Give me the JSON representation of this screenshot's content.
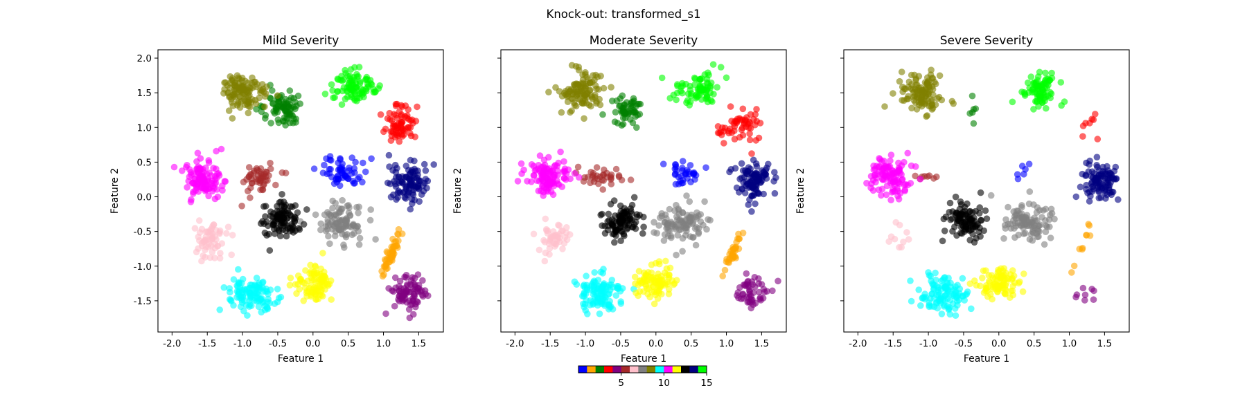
{
  "figure": {
    "suptitle": "Knock-out: transformed_s1"
  },
  "chart_data": [
    {
      "type": "scatter",
      "title": "Mild Severity",
      "xlabel": "Feature 1",
      "ylabel": "Feature 2",
      "xlim": [
        -2.2,
        1.85
      ],
      "ylim": [
        -1.95,
        2.12
      ],
      "xticks": [
        -2.0,
        -1.5,
        -1.0,
        -0.5,
        0.0,
        0.5,
        1.0,
        1.5
      ],
      "yticks": [
        -1.5,
        -1.0,
        -0.5,
        0.0,
        0.5,
        1.0,
        1.5,
        2.0
      ],
      "show_yticklabels": true,
      "marker_alpha": 0.6,
      "clusters": [
        {
          "label": 0,
          "color": "#0000ff",
          "center": [
            0.4,
            0.35
          ],
          "spread": [
            0.15,
            0.12
          ],
          "count": 60
        },
        {
          "label": 1,
          "color": "#ffa500",
          "center": [
            1.1,
            -0.85
          ],
          "spread": [
            0.06,
            0.14
          ],
          "count": 50,
          "elongated": true
        },
        {
          "label": 2,
          "color": "#008000",
          "center": [
            -0.45,
            1.25
          ],
          "spread": [
            0.16,
            0.13
          ],
          "count": 80
        },
        {
          "label": 3,
          "color": "#ff0000",
          "center": [
            1.25,
            1.0
          ],
          "spread": [
            0.13,
            0.14
          ],
          "count": 70
        },
        {
          "label": 4,
          "color": "#800080",
          "center": [
            1.35,
            -1.4
          ],
          "spread": [
            0.13,
            0.12
          ],
          "count": 80
        },
        {
          "label": 5,
          "color": "#a52a2a",
          "center": [
            -0.75,
            0.27
          ],
          "spread": [
            0.14,
            0.1
          ],
          "count": 50
        },
        {
          "label": 6,
          "color": "#ffc0cb",
          "center": [
            -1.45,
            -0.62
          ],
          "spread": [
            0.13,
            0.13
          ],
          "count": 60
        },
        {
          "label": 7,
          "color": "#808080",
          "center": [
            0.4,
            -0.38
          ],
          "spread": [
            0.17,
            0.14
          ],
          "count": 100
        },
        {
          "label": 8,
          "color": "#808000",
          "center": [
            -1.0,
            1.5
          ],
          "spread": [
            0.15,
            0.13
          ],
          "count": 110
        },
        {
          "label": 9,
          "color": "#00ffff",
          "center": [
            -0.85,
            -1.4
          ],
          "spread": [
            0.18,
            0.13
          ],
          "count": 110
        },
        {
          "label": 10,
          "color": "#ff00ff",
          "center": [
            -1.55,
            0.28
          ],
          "spread": [
            0.15,
            0.13
          ],
          "count": 110
        },
        {
          "label": 11,
          "color": "#ffff00",
          "center": [
            0.0,
            -1.25
          ],
          "spread": [
            0.13,
            0.12
          ],
          "count": 90
        },
        {
          "label": 12,
          "color": "#000000",
          "center": [
            -0.45,
            -0.35
          ],
          "spread": [
            0.14,
            0.13
          ],
          "count": 100
        },
        {
          "label": 13,
          "color": "#000080",
          "center": [
            1.4,
            0.22
          ],
          "spread": [
            0.13,
            0.15
          ],
          "count": 100
        },
        {
          "label": 14,
          "color": "#00ff00",
          "center": [
            0.6,
            1.58
          ],
          "spread": [
            0.17,
            0.12
          ],
          "count": 90
        }
      ]
    },
    {
      "type": "scatter",
      "title": "Moderate Severity",
      "xlabel": "Feature 1",
      "ylabel": "Feature 2",
      "xlim": [
        -2.2,
        1.85
      ],
      "ylim": [
        -1.95,
        2.12
      ],
      "xticks": [
        -2.0,
        -1.5,
        -1.0,
        -0.5,
        0.0,
        0.5,
        1.0,
        1.5
      ],
      "yticks": [
        -1.5,
        -1.0,
        -0.5,
        0.0,
        0.5,
        1.0,
        1.5,
        2.0
      ],
      "show_yticklabels": false,
      "marker_alpha": 0.6,
      "clusters": [
        {
          "label": 0,
          "color": "#0000ff",
          "center": [
            0.4,
            0.35
          ],
          "spread": [
            0.12,
            0.1
          ],
          "count": 35
        },
        {
          "label": 1,
          "color": "#ffa500",
          "center": [
            1.1,
            -0.8
          ],
          "spread": [
            0.06,
            0.14
          ],
          "count": 35,
          "elongated": true
        },
        {
          "label": 2,
          "color": "#008000",
          "center": [
            -0.4,
            1.25
          ],
          "spread": [
            0.12,
            0.12
          ],
          "count": 55
        },
        {
          "label": 3,
          "color": "#ff0000",
          "center": [
            1.2,
            1.0
          ],
          "spread": [
            0.14,
            0.13
          ],
          "count": 55
        },
        {
          "label": 4,
          "color": "#800080",
          "center": [
            1.35,
            -1.4
          ],
          "spread": [
            0.12,
            0.12
          ],
          "count": 50
        },
        {
          "label": 5,
          "color": "#a52a2a",
          "center": [
            -0.8,
            0.27
          ],
          "spread": [
            0.16,
            0.08
          ],
          "count": 35
        },
        {
          "label": 6,
          "color": "#ffc0cb",
          "center": [
            -1.45,
            -0.6
          ],
          "spread": [
            0.13,
            0.13
          ],
          "count": 45
        },
        {
          "label": 7,
          "color": "#808080",
          "center": [
            0.4,
            -0.38
          ],
          "spread": [
            0.17,
            0.14
          ],
          "count": 100
        },
        {
          "label": 8,
          "color": "#808000",
          "center": [
            -1.05,
            1.5
          ],
          "spread": [
            0.15,
            0.13
          ],
          "count": 110
        },
        {
          "label": 9,
          "color": "#00ffff",
          "center": [
            -0.8,
            -1.4
          ],
          "spread": [
            0.18,
            0.13
          ],
          "count": 110
        },
        {
          "label": 10,
          "color": "#ff00ff",
          "center": [
            -1.55,
            0.3
          ],
          "spread": [
            0.15,
            0.13
          ],
          "count": 110
        },
        {
          "label": 11,
          "color": "#ffff00",
          "center": [
            0.0,
            -1.25
          ],
          "spread": [
            0.13,
            0.12
          ],
          "count": 90
        },
        {
          "label": 12,
          "color": "#000000",
          "center": [
            -0.5,
            -0.35
          ],
          "spread": [
            0.14,
            0.13
          ],
          "count": 100
        },
        {
          "label": 13,
          "color": "#000080",
          "center": [
            1.4,
            0.22
          ],
          "spread": [
            0.13,
            0.15
          ],
          "count": 100
        },
        {
          "label": 14,
          "color": "#00ff00",
          "center": [
            0.6,
            1.55
          ],
          "spread": [
            0.15,
            0.12
          ],
          "count": 80
        }
      ]
    },
    {
      "type": "scatter",
      "title": "Severe Severity",
      "xlabel": "Feature 1",
      "ylabel": "Feature 2",
      "xlim": [
        -2.2,
        1.85
      ],
      "ylim": [
        -1.95,
        2.12
      ],
      "xticks": [
        -2.0,
        -1.5,
        -1.0,
        -0.5,
        0.0,
        0.5,
        1.0,
        1.5
      ],
      "yticks": [
        -1.5,
        -1.0,
        -0.5,
        0.0,
        0.5,
        1.0,
        1.5,
        2.0
      ],
      "show_yticklabels": false,
      "marker_alpha": 0.6,
      "clusters": [
        {
          "label": 0,
          "color": "#0000ff",
          "center": [
            0.35,
            0.35
          ],
          "spread": [
            0.07,
            0.1
          ],
          "count": 6
        },
        {
          "label": 1,
          "color": "#ffa500",
          "center": [
            1.17,
            -0.75
          ],
          "spread": [
            0.06,
            0.22
          ],
          "count": 10,
          "elongated": true
        },
        {
          "label": 2,
          "color": "#008000",
          "center": [
            -0.4,
            1.2
          ],
          "spread": [
            0.04,
            0.1
          ],
          "count": 6
        },
        {
          "label": 3,
          "color": "#ff0000",
          "center": [
            1.3,
            1.0
          ],
          "spread": [
            0.05,
            0.08
          ],
          "count": 8
        },
        {
          "label": 4,
          "color": "#800080",
          "center": [
            1.3,
            -1.4
          ],
          "spread": [
            0.12,
            0.06
          ],
          "count": 8
        },
        {
          "label": 5,
          "color": "#a52a2a",
          "center": [
            -1.05,
            0.3
          ],
          "spread": [
            0.1,
            0.03
          ],
          "count": 8
        },
        {
          "label": 6,
          "color": "#ffc0cb",
          "center": [
            -1.45,
            -0.6
          ],
          "spread": [
            0.08,
            0.12
          ],
          "count": 10
        },
        {
          "label": 7,
          "color": "#808080",
          "center": [
            0.4,
            -0.38
          ],
          "spread": [
            0.17,
            0.14
          ],
          "count": 100
        },
        {
          "label": 8,
          "color": "#808000",
          "center": [
            -1.1,
            1.5
          ],
          "spread": [
            0.15,
            0.13
          ],
          "count": 110
        },
        {
          "label": 9,
          "color": "#00ffff",
          "center": [
            -0.8,
            -1.4
          ],
          "spread": [
            0.18,
            0.13
          ],
          "count": 110
        },
        {
          "label": 10,
          "color": "#ff00ff",
          "center": [
            -1.55,
            0.3
          ],
          "spread": [
            0.15,
            0.13
          ],
          "count": 110
        },
        {
          "label": 11,
          "color": "#ffff00",
          "center": [
            0.0,
            -1.25
          ],
          "spread": [
            0.13,
            0.12
          ],
          "count": 90
        },
        {
          "label": 12,
          "color": "#000000",
          "center": [
            -0.45,
            -0.35
          ],
          "spread": [
            0.14,
            0.13
          ],
          "count": 100
        },
        {
          "label": 13,
          "color": "#000080",
          "center": [
            1.45,
            0.22
          ],
          "spread": [
            0.13,
            0.15
          ],
          "count": 100
        },
        {
          "label": 14,
          "color": "#00ff00",
          "center": [
            0.6,
            1.55
          ],
          "spread": [
            0.15,
            0.12
          ],
          "count": 80
        }
      ]
    }
  ],
  "colorbar": {
    "orientation": "horizontal",
    "range": [
      0,
      15
    ],
    "ticks": [
      5,
      10,
      15
    ],
    "colors": [
      "#0000ff",
      "#ffa500",
      "#008000",
      "#ff0000",
      "#800080",
      "#a52a2a",
      "#ffc0cb",
      "#808080",
      "#808000",
      "#00ffff",
      "#ff00ff",
      "#ffff00",
      "#000000",
      "#000080",
      "#00ff00"
    ]
  }
}
